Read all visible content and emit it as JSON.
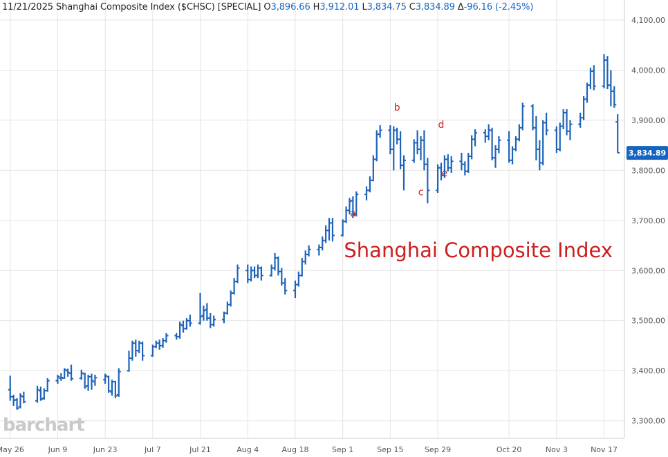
{
  "header": {
    "date": "11/21/2025",
    "instrument": "Shanghai Composite Index ($CHSC) [SPECIAL]",
    "open_label": "O",
    "open": "3,896.66",
    "high_label": "H",
    "high": "3,912.01",
    "low_label": "L",
    "low": "3,834.75",
    "close_label": "C",
    "close": "3,834.89",
    "change_label": "Δ",
    "change": "-96.16 (-2.45%)"
  },
  "watermark": "barchart",
  "colors": {
    "bars": "#1e63b8",
    "last_price_bg": "#1565c0",
    "annotation": "#cc1f1f",
    "grid": "#e4e4e4"
  },
  "chart_data": {
    "type": "ohlc",
    "title": "Shanghai Composite Index",
    "price_axis": {
      "side": "right",
      "ylim": [
        3265,
        4140
      ],
      "ticks": [
        3300,
        3400,
        3500,
        3600,
        3700,
        3800,
        3900,
        4000,
        4100
      ],
      "tick_labels": [
        "3,300.00",
        "3,400.00",
        "3,500.00",
        "3,600.00",
        "3,700.00",
        "3,800.00",
        "3,900.00",
        "4,000.00",
        "4,100.00"
      ]
    },
    "last_price": 3834.89,
    "last_price_label": "3,834.89",
    "x_ticks": [
      {
        "date": "2025-05-26",
        "label": "May 26"
      },
      {
        "date": "2025-06-09",
        "label": "Jun 9"
      },
      {
        "date": "2025-06-23",
        "label": "Jun 23"
      },
      {
        "date": "2025-07-07",
        "label": "Jul 7"
      },
      {
        "date": "2025-07-21",
        "label": "Jul 21"
      },
      {
        "date": "2025-08-04",
        "label": "Aug 4"
      },
      {
        "date": "2025-08-18",
        "label": "Aug 18"
      },
      {
        "date": "2025-09-01",
        "label": "Sep 1"
      },
      {
        "date": "2025-09-15",
        "label": "Sep 15"
      },
      {
        "date": "2025-09-29",
        "label": "Sep 29"
      },
      {
        "date": "2025-10-20",
        "label": "Oct 20"
      },
      {
        "date": "2025-11-03",
        "label": "Nov 3"
      },
      {
        "date": "2025-11-17",
        "label": "Nov 17"
      }
    ],
    "x_domain": [
      "2025-05-23",
      "2025-11-23"
    ],
    "grid": true,
    "annotations": [
      {
        "text": "a",
        "date": "2025-09-04",
        "price": 3708
      },
      {
        "text": "b",
        "date": "2025-09-17",
        "price": 3919
      },
      {
        "text": "c",
        "date": "2025-09-24",
        "price": 3750
      },
      {
        "text": "d",
        "date": "2025-09-30",
        "price": 3885
      },
      {
        "text": "e",
        "date": "2025-10-01",
        "price": 3788
      }
    ],
    "bars": [
      {
        "date": "2025-05-26",
        "o": 3362,
        "h": 3390,
        "l": 3340,
        "c": 3348
      },
      {
        "date": "2025-05-27",
        "o": 3348,
        "h": 3352,
        "l": 3330,
        "c": 3341
      },
      {
        "date": "2025-05-28",
        "o": 3342,
        "h": 3345,
        "l": 3322,
        "c": 3325
      },
      {
        "date": "2025-05-29",
        "o": 3328,
        "h": 3355,
        "l": 3325,
        "c": 3350
      },
      {
        "date": "2025-05-30",
        "o": 3348,
        "h": 3358,
        "l": 3335,
        "c": 3338
      },
      {
        "date": "2025-06-03",
        "o": 3340,
        "h": 3370,
        "l": 3336,
        "c": 3362
      },
      {
        "date": "2025-06-04",
        "o": 3360,
        "h": 3368,
        "l": 3340,
        "c": 3343
      },
      {
        "date": "2025-06-05",
        "o": 3345,
        "h": 3365,
        "l": 3342,
        "c": 3360
      },
      {
        "date": "2025-06-06",
        "o": 3360,
        "h": 3385,
        "l": 3358,
        "c": 3380
      },
      {
        "date": "2025-06-09",
        "o": 3380,
        "h": 3392,
        "l": 3374,
        "c": 3388
      },
      {
        "date": "2025-06-10",
        "o": 3385,
        "h": 3395,
        "l": 3380,
        "c": 3386
      },
      {
        "date": "2025-06-11",
        "o": 3385,
        "h": 3405,
        "l": 3384,
        "c": 3402
      },
      {
        "date": "2025-06-12",
        "o": 3400,
        "h": 3404,
        "l": 3388,
        "c": 3396
      },
      {
        "date": "2025-06-13",
        "o": 3395,
        "h": 3412,
        "l": 3380,
        "c": 3384
      },
      {
        "date": "2025-06-16",
        "o": 3385,
        "h": 3402,
        "l": 3382,
        "c": 3395
      },
      {
        "date": "2025-06-17",
        "o": 3394,
        "h": 3396,
        "l": 3364,
        "c": 3368
      },
      {
        "date": "2025-06-18",
        "o": 3370,
        "h": 3392,
        "l": 3360,
        "c": 3388
      },
      {
        "date": "2025-06-19",
        "o": 3388,
        "h": 3394,
        "l": 3362,
        "c": 3380
      },
      {
        "date": "2025-06-20",
        "o": 3378,
        "h": 3392,
        "l": 3370,
        "c": 3386
      },
      {
        "date": "2025-06-23",
        "o": 3382,
        "h": 3394,
        "l": 3374,
        "c": 3390
      },
      {
        "date": "2025-06-24",
        "o": 3388,
        "h": 3390,
        "l": 3356,
        "c": 3360
      },
      {
        "date": "2025-06-25",
        "o": 3358,
        "h": 3382,
        "l": 3350,
        "c": 3378
      },
      {
        "date": "2025-06-26",
        "o": 3378,
        "h": 3380,
        "l": 3345,
        "c": 3350
      },
      {
        "date": "2025-06-27",
        "o": 3352,
        "h": 3405,
        "l": 3348,
        "c": 3398
      },
      {
        "date": "2025-06-30",
        "o": 3400,
        "h": 3440,
        "l": 3398,
        "c": 3425
      },
      {
        "date": "2025-07-01",
        "o": 3425,
        "h": 3460,
        "l": 3420,
        "c": 3455
      },
      {
        "date": "2025-07-02",
        "o": 3455,
        "h": 3462,
        "l": 3428,
        "c": 3440
      },
      {
        "date": "2025-07-03",
        "o": 3440,
        "h": 3460,
        "l": 3435,
        "c": 3455
      },
      {
        "date": "2025-07-04",
        "o": 3455,
        "h": 3458,
        "l": 3420,
        "c": 3430
      },
      {
        "date": "2025-07-07",
        "o": 3430,
        "h": 3452,
        "l": 3428,
        "c": 3448
      },
      {
        "date": "2025-07-08",
        "o": 3448,
        "h": 3460,
        "l": 3445,
        "c": 3455
      },
      {
        "date": "2025-07-09",
        "o": 3455,
        "h": 3462,
        "l": 3442,
        "c": 3450
      },
      {
        "date": "2025-07-10",
        "o": 3450,
        "h": 3465,
        "l": 3446,
        "c": 3460
      },
      {
        "date": "2025-07-11",
        "o": 3460,
        "h": 3475,
        "l": 3456,
        "c": 3470
      },
      {
        "date": "2025-07-14",
        "o": 3470,
        "h": 3475,
        "l": 3462,
        "c": 3468
      },
      {
        "date": "2025-07-15",
        "o": 3468,
        "h": 3498,
        "l": 3464,
        "c": 3492
      },
      {
        "date": "2025-07-16",
        "o": 3490,
        "h": 3500,
        "l": 3476,
        "c": 3484
      },
      {
        "date": "2025-07-17",
        "o": 3484,
        "h": 3505,
        "l": 3482,
        "c": 3500
      },
      {
        "date": "2025-07-18",
        "o": 3500,
        "h": 3512,
        "l": 3488,
        "c": 3495
      },
      {
        "date": "2025-07-21",
        "o": 3495,
        "h": 3555,
        "l": 3492,
        "c": 3508
      },
      {
        "date": "2025-07-22",
        "o": 3510,
        "h": 3530,
        "l": 3500,
        "c": 3520
      },
      {
        "date": "2025-07-23",
        "o": 3522,
        "h": 3535,
        "l": 3500,
        "c": 3505
      },
      {
        "date": "2025-07-24",
        "o": 3505,
        "h": 3515,
        "l": 3485,
        "c": 3492
      },
      {
        "date": "2025-07-25",
        "o": 3492,
        "h": 3510,
        "l": 3488,
        "c": 3502
      },
      {
        "date": "2025-07-28",
        "o": 3502,
        "h": 3518,
        "l": 3495,
        "c": 3515
      },
      {
        "date": "2025-07-29",
        "o": 3515,
        "h": 3538,
        "l": 3512,
        "c": 3532
      },
      {
        "date": "2025-07-30",
        "o": 3532,
        "h": 3560,
        "l": 3528,
        "c": 3555
      },
      {
        "date": "2025-07-31",
        "o": 3555,
        "h": 3585,
        "l": 3552,
        "c": 3578
      },
      {
        "date": "2025-08-01",
        "o": 3578,
        "h": 3612,
        "l": 3575,
        "c": 3605
      },
      {
        "date": "2025-08-04",
        "o": 3600,
        "h": 3612,
        "l": 3575,
        "c": 3582
      },
      {
        "date": "2025-08-05",
        "o": 3582,
        "h": 3608,
        "l": 3578,
        "c": 3600
      },
      {
        "date": "2025-08-06",
        "o": 3600,
        "h": 3608,
        "l": 3585,
        "c": 3590
      },
      {
        "date": "2025-08-07",
        "o": 3590,
        "h": 3612,
        "l": 3585,
        "c": 3605
      },
      {
        "date": "2025-08-08",
        "o": 3605,
        "h": 3608,
        "l": 3580,
        "c": 3590
      },
      {
        "date": "2025-08-11",
        "o": 3590,
        "h": 3612,
        "l": 3588,
        "c": 3605
      },
      {
        "date": "2025-08-12",
        "o": 3605,
        "h": 3635,
        "l": 3600,
        "c": 3625
      },
      {
        "date": "2025-08-13",
        "o": 3625,
        "h": 3628,
        "l": 3590,
        "c": 3598
      },
      {
        "date": "2025-08-14",
        "o": 3598,
        "h": 3605,
        "l": 3570,
        "c": 3575
      },
      {
        "date": "2025-08-15",
        "o": 3575,
        "h": 3585,
        "l": 3552,
        "c": 3560
      },
      {
        "date": "2025-08-18",
        "o": 3560,
        "h": 3580,
        "l": 3545,
        "c": 3572
      },
      {
        "date": "2025-08-19",
        "o": 3572,
        "h": 3598,
        "l": 3568,
        "c": 3590
      },
      {
        "date": "2025-08-20",
        "o": 3590,
        "h": 3625,
        "l": 3588,
        "c": 3618
      },
      {
        "date": "2025-08-21",
        "o": 3618,
        "h": 3640,
        "l": 3612,
        "c": 3632
      },
      {
        "date": "2025-08-22",
        "o": 3632,
        "h": 3650,
        "l": 3628,
        "c": 3642
      },
      {
        "date": "2025-08-25",
        "o": 3642,
        "h": 3652,
        "l": 3630,
        "c": 3646
      },
      {
        "date": "2025-08-26",
        "o": 3646,
        "h": 3668,
        "l": 3640,
        "c": 3660
      },
      {
        "date": "2025-08-27",
        "o": 3660,
        "h": 3690,
        "l": 3655,
        "c": 3680
      },
      {
        "date": "2025-08-28",
        "o": 3680,
        "h": 3705,
        "l": 3660,
        "c": 3695
      },
      {
        "date": "2025-08-29",
        "o": 3695,
        "h": 3705,
        "l": 3658,
        "c": 3670
      },
      {
        "date": "2025-09-01",
        "o": 3670,
        "h": 3702,
        "l": 3668,
        "c": 3698
      },
      {
        "date": "2025-09-02",
        "o": 3698,
        "h": 3728,
        "l": 3695,
        "c": 3720
      },
      {
        "date": "2025-09-03",
        "o": 3720,
        "h": 3745,
        "l": 3712,
        "c": 3738
      },
      {
        "date": "2025-09-04",
        "o": 3740,
        "h": 3748,
        "l": 3705,
        "c": 3712
      },
      {
        "date": "2025-09-05",
        "o": 3712,
        "h": 3758,
        "l": 3708,
        "c": 3752
      },
      {
        "date": "2025-09-08",
        "o": 3752,
        "h": 3768,
        "l": 3740,
        "c": 3760
      },
      {
        "date": "2025-09-09",
        "o": 3760,
        "h": 3788,
        "l": 3756,
        "c": 3780
      },
      {
        "date": "2025-09-10",
        "o": 3780,
        "h": 3830,
        "l": 3778,
        "c": 3822
      },
      {
        "date": "2025-09-11",
        "o": 3822,
        "h": 3880,
        "l": 3818,
        "c": 3872
      },
      {
        "date": "2025-09-12",
        "o": 3872,
        "h": 3890,
        "l": 3865,
        "c": 3880
      },
      {
        "date": "2025-09-15",
        "o": 3880,
        "h": 3890,
        "l": 3832,
        "c": 3842
      },
      {
        "date": "2025-09-16",
        "o": 3842,
        "h": 3888,
        "l": 3800,
        "c": 3880
      },
      {
        "date": "2025-09-17",
        "o": 3880,
        "h": 3885,
        "l": 3852,
        "c": 3862
      },
      {
        "date": "2025-09-18",
        "o": 3862,
        "h": 3878,
        "l": 3802,
        "c": 3810
      },
      {
        "date": "2025-09-19",
        "o": 3810,
        "h": 3830,
        "l": 3760,
        "c": 3820
      },
      {
        "date": "2025-09-22",
        "o": 3820,
        "h": 3862,
        "l": 3815,
        "c": 3855
      },
      {
        "date": "2025-09-23",
        "o": 3855,
        "h": 3880,
        "l": 3832,
        "c": 3842
      },
      {
        "date": "2025-09-24",
        "o": 3842,
        "h": 3868,
        "l": 3820,
        "c": 3860
      },
      {
        "date": "2025-09-25",
        "o": 3860,
        "h": 3880,
        "l": 3800,
        "c": 3812
      },
      {
        "date": "2025-09-26",
        "o": 3812,
        "h": 3825,
        "l": 3734,
        "c": 3760
      },
      {
        "date": "2025-09-29",
        "o": 3760,
        "h": 3812,
        "l": 3755,
        "c": 3805
      },
      {
        "date": "2025-09-30",
        "o": 3805,
        "h": 3815,
        "l": 3780,
        "c": 3790
      },
      {
        "date": "2025-10-01",
        "o": 3790,
        "h": 3830,
        "l": 3785,
        "c": 3822
      },
      {
        "date": "2025-10-02",
        "o": 3822,
        "h": 3832,
        "l": 3798,
        "c": 3805
      },
      {
        "date": "2025-10-03",
        "o": 3805,
        "h": 3828,
        "l": 3795,
        "c": 3818
      },
      {
        "date": "2025-10-06",
        "o": 3818,
        "h": 3835,
        "l": 3800,
        "c": 3812
      },
      {
        "date": "2025-10-07",
        "o": 3812,
        "h": 3818,
        "l": 3790,
        "c": 3798
      },
      {
        "date": "2025-10-08",
        "o": 3798,
        "h": 3835,
        "l": 3795,
        "c": 3828
      },
      {
        "date": "2025-10-09",
        "o": 3828,
        "h": 3870,
        "l": 3822,
        "c": 3862
      },
      {
        "date": "2025-10-10",
        "o": 3862,
        "h": 3882,
        "l": 3848,
        "c": 3875
      },
      {
        "date": "2025-10-13",
        "o": 3875,
        "h": 3882,
        "l": 3855,
        "c": 3868
      },
      {
        "date": "2025-10-14",
        "o": 3868,
        "h": 3892,
        "l": 3860,
        "c": 3880
      },
      {
        "date": "2025-10-15",
        "o": 3880,
        "h": 3885,
        "l": 3820,
        "c": 3825
      },
      {
        "date": "2025-10-16",
        "o": 3825,
        "h": 3850,
        "l": 3805,
        "c": 3842
      },
      {
        "date": "2025-10-17",
        "o": 3842,
        "h": 3868,
        "l": 3834,
        "c": 3860
      },
      {
        "date": "2025-10-20",
        "o": 3860,
        "h": 3878,
        "l": 3815,
        "c": 3820
      },
      {
        "date": "2025-10-21",
        "o": 3820,
        "h": 3848,
        "l": 3812,
        "c": 3842
      },
      {
        "date": "2025-10-22",
        "o": 3842,
        "h": 3868,
        "l": 3838,
        "c": 3862
      },
      {
        "date": "2025-10-23",
        "o": 3862,
        "h": 3892,
        "l": 3858,
        "c": 3885
      },
      {
        "date": "2025-10-24",
        "o": 3885,
        "h": 3935,
        "l": 3880,
        "c": 3928
      },
      {
        "date": "2025-10-27",
        "o": 3928,
        "h": 3932,
        "l": 3880,
        "c": 3885
      },
      {
        "date": "2025-10-28",
        "o": 3885,
        "h": 3908,
        "l": 3820,
        "c": 3842
      },
      {
        "date": "2025-10-29",
        "o": 3842,
        "h": 3860,
        "l": 3800,
        "c": 3815
      },
      {
        "date": "2025-10-30",
        "o": 3815,
        "h": 3900,
        "l": 3810,
        "c": 3895
      },
      {
        "date": "2025-10-31",
        "o": 3895,
        "h": 3915,
        "l": 3870,
        "c": 3880
      },
      {
        "date": "2025-11-03",
        "o": 3880,
        "h": 3888,
        "l": 3835,
        "c": 3842
      },
      {
        "date": "2025-11-04",
        "o": 3842,
        "h": 3895,
        "l": 3838,
        "c": 3888
      },
      {
        "date": "2025-11-05",
        "o": 3888,
        "h": 3922,
        "l": 3882,
        "c": 3915
      },
      {
        "date": "2025-11-06",
        "o": 3915,
        "h": 3922,
        "l": 3870,
        "c": 3878
      },
      {
        "date": "2025-11-07",
        "o": 3878,
        "h": 3900,
        "l": 3860,
        "c": 3892
      },
      {
        "date": "2025-11-10",
        "o": 3892,
        "h": 3915,
        "l": 3885,
        "c": 3905
      },
      {
        "date": "2025-11-11",
        "o": 3905,
        "h": 3948,
        "l": 3900,
        "c": 3942
      },
      {
        "date": "2025-11-12",
        "o": 3942,
        "h": 3975,
        "l": 3935,
        "c": 3970
      },
      {
        "date": "2025-11-13",
        "o": 3970,
        "h": 4005,
        "l": 3962,
        "c": 3998
      },
      {
        "date": "2025-11-14",
        "o": 3998,
        "h": 4010,
        "l": 3960,
        "c": 3968
      },
      {
        "date": "2025-11-17",
        "o": 3968,
        "h": 4032,
        "l": 3964,
        "c": 4020
      },
      {
        "date": "2025-11-18",
        "o": 4020,
        "h": 4028,
        "l": 3962,
        "c": 3970
      },
      {
        "date": "2025-11-19",
        "o": 3970,
        "h": 4000,
        "l": 3928,
        "c": 3958
      },
      {
        "date": "2025-11-20",
        "o": 3958,
        "h": 3968,
        "l": 3925,
        "c": 3931
      },
      {
        "date": "2025-11-21",
        "o": 3896.66,
        "h": 3912.01,
        "l": 3834.75,
        "c": 3834.89
      }
    ]
  }
}
